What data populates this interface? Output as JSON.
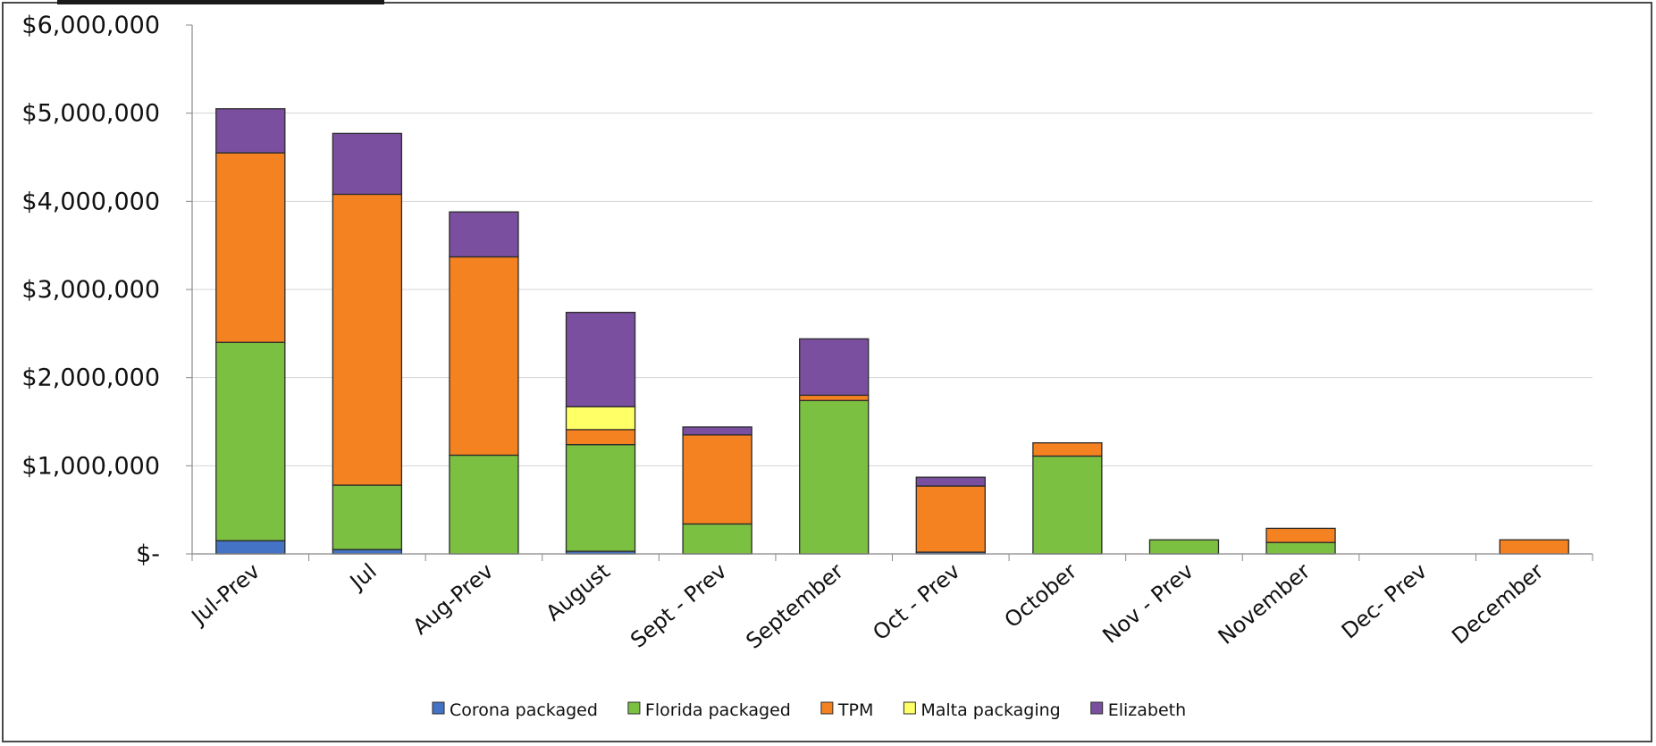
{
  "chart_data": {
    "type": "bar",
    "stacked": true,
    "categories": [
      "Jul-Prev",
      "Jul",
      "Aug-Prev",
      "August",
      "Sept - Prev",
      "September",
      "Oct - Prev",
      "October",
      "Nov - Prev",
      "November",
      "Dec- Prev",
      "December"
    ],
    "series": [
      {
        "name": "Corona packaged",
        "color": "#4472c4",
        "values": [
          150000,
          50000,
          0,
          30000,
          0,
          0,
          20000,
          0,
          0,
          0,
          0,
          0
        ]
      },
      {
        "name": "Florida packaged",
        "color": "#7cc042",
        "values": [
          2250000,
          730000,
          1120000,
          1210000,
          340000,
          1740000,
          0,
          1110000,
          160000,
          130000,
          0,
          0
        ]
      },
      {
        "name": "TPM",
        "color": "#f58220",
        "values": [
          2150000,
          3300000,
          2250000,
          170000,
          1010000,
          60000,
          750000,
          150000,
          0,
          160000,
          0,
          160000
        ]
      },
      {
        "name": "Malta packaging",
        "color": "#ffff66",
        "values": [
          0,
          0,
          0,
          260000,
          0,
          0,
          0,
          0,
          0,
          0,
          0,
          0
        ]
      },
      {
        "name": "Elizabeth",
        "color": "#7b4fa0",
        "values": [
          500000,
          690000,
          510000,
          1070000,
          90000,
          640000,
          100000,
          0,
          0,
          0,
          0,
          0
        ]
      }
    ],
    "y_ticks": [
      "$-",
      "$1,000,000",
      "$2,000,000",
      "$3,000,000",
      "$4,000,000",
      "$5,000,000",
      "$6,000,000"
    ],
    "ylim": [
      0,
      6000000
    ],
    "grid": true,
    "legend_position": "bottom"
  }
}
